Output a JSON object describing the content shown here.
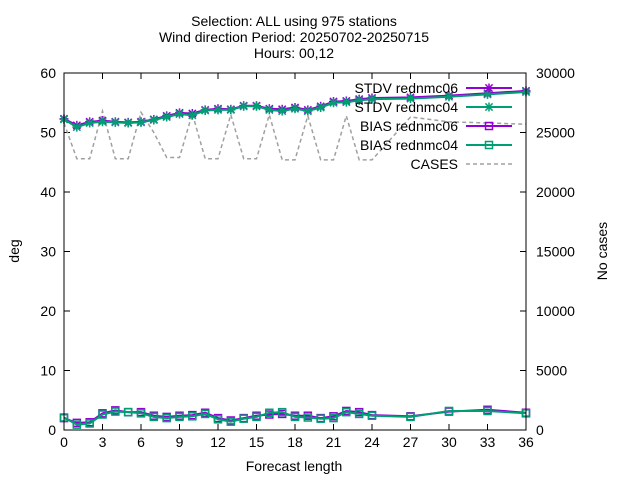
{
  "chart_data": {
    "type": "line",
    "title_lines": [
      "Selection: ALL using   975 stations",
      "Wind direction   Period: 20250702-20250715",
      "Hours: 00,12"
    ],
    "xlabel": "Forecast length",
    "ylabel": "deg",
    "y2label": "No cases",
    "xlim": [
      0,
      36
    ],
    "ylim": [
      0,
      60
    ],
    "y2lim": [
      0,
      30000
    ],
    "xticks": [
      0,
      3,
      6,
      9,
      12,
      15,
      18,
      21,
      24,
      27,
      30,
      33,
      36
    ],
    "yticks": [
      0,
      10,
      20,
      30,
      40,
      50,
      60
    ],
    "y2ticks": [
      0,
      5000,
      10000,
      15000,
      20000,
      25000,
      30000
    ],
    "x": [
      0,
      1,
      2,
      3,
      4,
      5,
      6,
      7,
      8,
      9,
      10,
      11,
      12,
      13,
      14,
      15,
      16,
      17,
      18,
      19,
      20,
      21,
      22,
      23,
      24,
      27,
      30,
      33,
      36
    ],
    "legend_position": "top-right",
    "series": [
      {
        "name": "STDV rednmc06",
        "axis": "y",
        "color": "#9400d3",
        "marker": "star",
        "values": [
          52.3,
          51.2,
          51.8,
          52.0,
          51.8,
          51.7,
          51.8,
          52.2,
          52.8,
          53.3,
          53.2,
          53.8,
          54.0,
          53.9,
          54.5,
          54.5,
          54.0,
          53.9,
          54.2,
          53.8,
          54.4,
          55.2,
          55.3,
          55.6,
          55.8,
          55.9,
          56.2,
          56.6,
          57.0
        ]
      },
      {
        "name": "STDV rednmc04",
        "axis": "y",
        "color": "#009e73",
        "marker": "star",
        "values": [
          52.2,
          50.9,
          51.6,
          51.8,
          51.7,
          51.6,
          51.7,
          52.1,
          52.6,
          53.1,
          52.9,
          53.7,
          53.8,
          53.8,
          54.4,
          54.4,
          53.8,
          53.6,
          54.0,
          53.6,
          54.2,
          55.0,
          55.1,
          55.4,
          55.6,
          55.7,
          56.0,
          56.4,
          56.8
        ]
      },
      {
        "name": "BIAS rednmc06",
        "axis": "y",
        "color": "#9400d3",
        "marker": "square",
        "values": [
          2.0,
          1.2,
          1.3,
          2.8,
          3.3,
          3.0,
          3.0,
          2.4,
          2.2,
          2.4,
          2.5,
          2.9,
          2.0,
          1.6,
          2.0,
          2.4,
          2.6,
          2.7,
          2.4,
          2.4,
          2.0,
          2.3,
          3.2,
          3.0,
          2.5,
          2.3,
          3.1,
          3.4,
          2.9
        ]
      },
      {
        "name": "BIAS rednmc04",
        "axis": "y",
        "color": "#009e73",
        "marker": "square",
        "values": [
          2.1,
          0.9,
          1.1,
          2.6,
          3.1,
          3.0,
          2.8,
          2.2,
          2.0,
          2.2,
          2.3,
          2.7,
          1.8,
          1.4,
          1.9,
          2.2,
          2.9,
          3.0,
          2.2,
          2.1,
          1.9,
          2.0,
          3.0,
          2.7,
          2.4,
          2.2,
          3.2,
          3.2,
          2.8
        ]
      },
      {
        "name": "CASES",
        "axis": "y2",
        "color": "#a0a0a0",
        "marker": "none",
        "values": [
          25800,
          22800,
          22800,
          26800,
          22800,
          22800,
          26700,
          25000,
          22900,
          22900,
          26600,
          22800,
          22800,
          26500,
          22800,
          22800,
          26500,
          22700,
          22700,
          26400,
          22700,
          22700,
          26400,
          22700,
          22700,
          26300,
          25900,
          25800,
          25700
        ]
      }
    ]
  }
}
